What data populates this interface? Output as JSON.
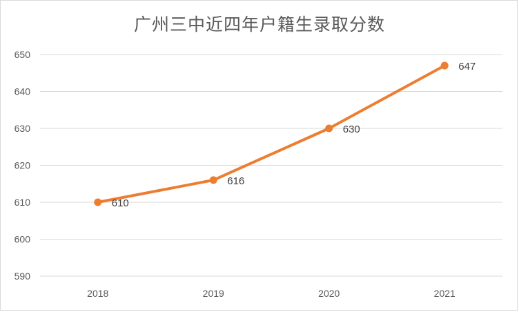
{
  "chart_data": {
    "type": "line",
    "title": "广州三中近四年户籍生录取分数",
    "xlabel": "",
    "ylabel": "",
    "categories": [
      "2018",
      "2019",
      "2020",
      "2021"
    ],
    "series": [
      {
        "values": [
          610,
          616,
          630,
          647
        ],
        "color": "#ED7D31"
      }
    ],
    "data_labels": [
      "610",
      "616",
      "630",
      "647"
    ],
    "y_ticks": [
      "590",
      "600",
      "610",
      "620",
      "630",
      "640",
      "650"
    ],
    "ylim": [
      590,
      650
    ],
    "grid": true,
    "legend": "none",
    "colors": {
      "line": "#ED7D31",
      "grid": "#d9d9d9",
      "text": "#595959"
    }
  }
}
